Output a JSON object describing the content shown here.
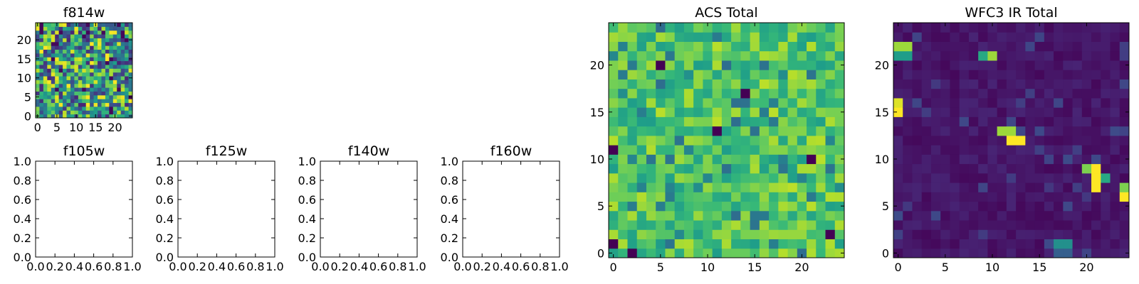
{
  "chart_data": [
    {
      "type": "heatmap",
      "title": "f814w",
      "grid_size": [
        25,
        25
      ],
      "xticks": [
        "0",
        "5",
        "10",
        "15",
        "20"
      ],
      "yticks": [
        "0",
        "5",
        "10",
        "15",
        "20"
      ],
      "xlim": [
        -0.5,
        24.5
      ],
      "ylim": [
        -0.5,
        24.5
      ],
      "colormap": "viridis",
      "pattern": "uniform noise"
    },
    {
      "type": "empty",
      "title": "f105w",
      "xticks": [
        "0.0",
        "0.2",
        "0.4",
        "0.6",
        "0.8",
        "1.0"
      ],
      "yticks": [
        "0.0",
        "0.2",
        "0.4",
        "0.6",
        "0.8",
        "1.0"
      ],
      "xlim": [
        0,
        1
      ],
      "ylim": [
        0,
        1
      ]
    },
    {
      "type": "empty",
      "title": "f125w",
      "xticks": [
        "0.0",
        "0.2",
        "0.4",
        "0.6",
        "0.8",
        "1.0"
      ],
      "yticks": [
        "0.0",
        "0.2",
        "0.4",
        "0.6",
        "0.8",
        "1.0"
      ],
      "xlim": [
        0,
        1
      ],
      "ylim": [
        0,
        1
      ]
    },
    {
      "type": "empty",
      "title": "f140w",
      "xticks": [
        "0.0",
        "0.2",
        "0.4",
        "0.6",
        "0.8",
        "1.0"
      ],
      "yticks": [
        "0.0",
        "0.2",
        "0.4",
        "0.6",
        "0.8",
        "1.0"
      ],
      "xlim": [
        0,
        1
      ],
      "ylim": [
        0,
        1
      ]
    },
    {
      "type": "empty",
      "title": "f160w",
      "xticks": [
        "0.0",
        "0.2",
        "0.4",
        "0.6",
        "0.8",
        "1.0"
      ],
      "yticks": [
        "0.0",
        "0.2",
        "0.4",
        "0.6",
        "0.8",
        "1.0"
      ],
      "xlim": [
        0,
        1
      ],
      "ylim": [
        0,
        1
      ]
    },
    {
      "type": "heatmap",
      "title": "ACS Total",
      "grid_size": [
        25,
        25
      ],
      "xticks": [
        "0",
        "5",
        "10",
        "15",
        "20"
      ],
      "yticks": [
        "0",
        "5",
        "10",
        "15",
        "20"
      ],
      "xlim": [
        -0.5,
        24.5
      ],
      "ylim": [
        -0.5,
        24.5
      ],
      "colormap": "viridis",
      "pattern": "high noise",
      "dark_pixels": [
        [
          5,
          20
        ],
        [
          11,
          13
        ],
        [
          14,
          17
        ],
        [
          0,
          1
        ],
        [
          23,
          2
        ],
        [
          2,
          0
        ],
        [
          0,
          11
        ],
        [
          21,
          10
        ]
      ]
    },
    {
      "type": "heatmap",
      "title": "WFC3 IR Total",
      "grid_size": [
        25,
        25
      ],
      "xticks": [
        "0",
        "5",
        "10",
        "15",
        "20"
      ],
      "yticks": [
        "0",
        "5",
        "10",
        "15",
        "20"
      ],
      "xlim": [
        -0.5,
        24.5
      ],
      "ylim": [
        -0.5,
        24.5
      ],
      "colormap": "viridis",
      "pattern": "low background",
      "bright_pixels": [
        [
          0,
          22,
          0.85
        ],
        [
          1,
          22,
          0.85
        ],
        [
          0,
          21,
          0.55
        ],
        [
          1,
          21,
          0.55
        ],
        [
          0,
          15,
          1.0
        ],
        [
          0,
          16,
          0.95
        ],
        [
          9,
          21,
          0.6
        ],
        [
          10,
          21,
          0.85
        ],
        [
          11,
          13,
          0.85
        ],
        [
          12,
          13,
          0.85
        ],
        [
          12,
          12,
          1.0
        ],
        [
          13,
          12,
          1.0
        ],
        [
          20,
          9,
          0.8
        ],
        [
          21,
          9,
          1.0
        ],
        [
          21,
          8,
          1.0
        ],
        [
          21,
          7,
          1.0
        ],
        [
          22,
          8,
          0.6
        ],
        [
          24,
          7,
          0.8
        ],
        [
          24,
          6,
          1.0
        ],
        [
          17,
          1,
          0.5
        ],
        [
          18,
          1,
          0.5
        ],
        [
          17,
          0,
          0.3
        ],
        [
          18,
          0,
          0.3
        ]
      ]
    }
  ]
}
